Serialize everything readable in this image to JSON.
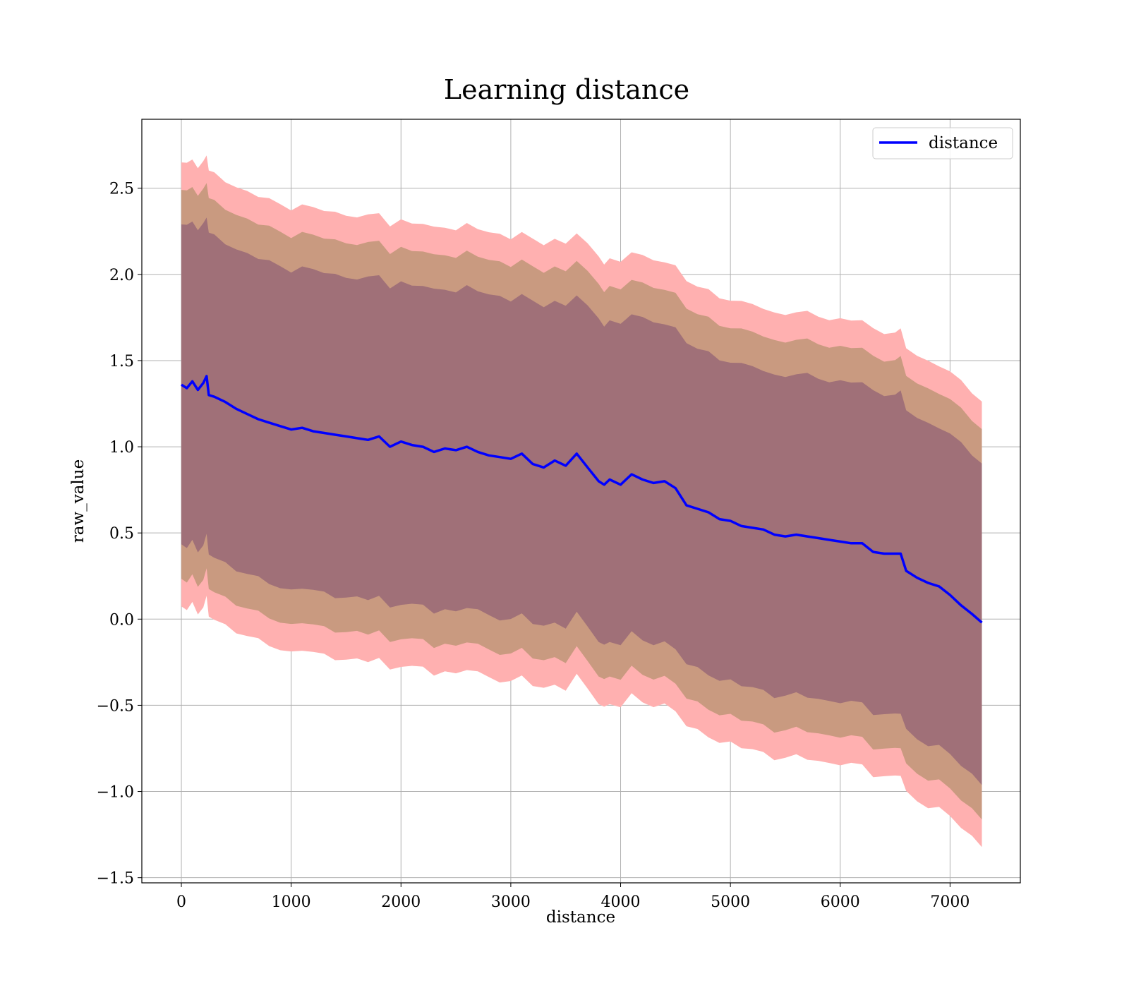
{
  "chart_data": {
    "type": "line",
    "title": "Learning distance",
    "xlabel": "distance",
    "ylabel": "raw_value",
    "xlim": [
      -360,
      7640
    ],
    "ylim": [
      -1.53,
      2.9
    ],
    "xticks": [
      0,
      1000,
      2000,
      3000,
      4000,
      5000,
      6000,
      7000
    ],
    "xtick_labels": [
      "0",
      "1000",
      "2000",
      "3000",
      "4000",
      "5000",
      "6000",
      "7000"
    ],
    "yticks": [
      -1.5,
      -1.0,
      -0.5,
      0.0,
      0.5,
      1.0,
      1.5,
      2.0,
      2.5
    ],
    "ytick_labels": [
      "−1.5",
      "−1.0",
      "−0.5",
      "0.0",
      "0.5",
      "1.0",
      "1.5",
      "2.0",
      "2.5"
    ],
    "grid": true,
    "legend": {
      "placement": "top-right",
      "entries": [
        "distance"
      ]
    },
    "colors": {
      "line": "#0000ff",
      "band_outer": "#ffb0b0",
      "band_mid": "#c99a80",
      "band_inner": "#a07078",
      "grid": "#b0b0b0"
    },
    "series": [
      {
        "name": "distance",
        "x": [
          0,
          50,
          100,
          150,
          200,
          230,
          250,
          300,
          400,
          500,
          600,
          700,
          800,
          900,
          1000,
          1100,
          1200,
          1300,
          1400,
          1500,
          1600,
          1700,
          1800,
          1900,
          2000,
          2100,
          2200,
          2300,
          2400,
          2500,
          2600,
          2700,
          2800,
          2900,
          3000,
          3100,
          3200,
          3300,
          3400,
          3500,
          3600,
          3700,
          3800,
          3850,
          3900,
          4000,
          4100,
          4200,
          4300,
          4400,
          4500,
          4600,
          4700,
          4800,
          4900,
          5000,
          5100,
          5200,
          5300,
          5400,
          5500,
          5600,
          5700,
          5800,
          5900,
          6000,
          6100,
          6200,
          6300,
          6400,
          6500,
          6550,
          6600,
          6700,
          6800,
          6900,
          7000,
          7100,
          7200,
          7290
        ],
        "y": [
          1.36,
          1.34,
          1.38,
          1.33,
          1.37,
          1.41,
          1.3,
          1.29,
          1.26,
          1.22,
          1.19,
          1.16,
          1.14,
          1.12,
          1.1,
          1.11,
          1.09,
          1.08,
          1.07,
          1.06,
          1.05,
          1.04,
          1.06,
          1.0,
          1.03,
          1.01,
          1.0,
          0.97,
          0.99,
          0.98,
          1.0,
          0.97,
          0.95,
          0.94,
          0.93,
          0.96,
          0.9,
          0.88,
          0.92,
          0.89,
          0.96,
          0.88,
          0.8,
          0.78,
          0.81,
          0.78,
          0.84,
          0.81,
          0.79,
          0.8,
          0.76,
          0.66,
          0.64,
          0.62,
          0.58,
          0.57,
          0.54,
          0.53,
          0.52,
          0.49,
          0.48,
          0.49,
          0.48,
          0.47,
          0.46,
          0.45,
          0.44,
          0.44,
          0.39,
          0.38,
          0.38,
          0.38,
          0.28,
          0.24,
          0.21,
          0.19,
          0.14,
          0.08,
          0.03,
          -0.02
        ]
      }
    ],
    "bands": [
      {
        "layer": "outer",
        "offset": 1.29
      },
      {
        "layer": "mid",
        "offset": 1.13
      },
      {
        "layer": "inner",
        "offset": 0.93
      }
    ]
  }
}
